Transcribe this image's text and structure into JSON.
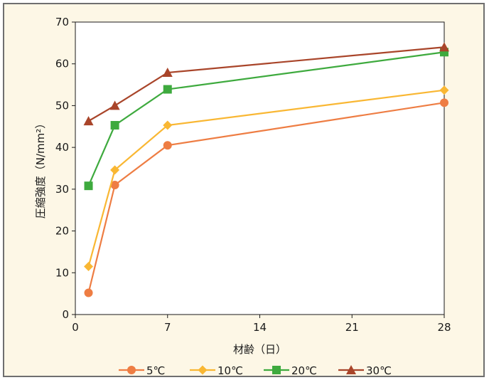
{
  "chart_data": {
    "type": "line",
    "title": "",
    "xlabel": "材齢（日）",
    "ylabel": "圧縮強度（N/mm²）",
    "xlim": [
      0,
      28
    ],
    "ylim": [
      0,
      70
    ],
    "x_ticks": [
      0,
      7,
      14,
      21,
      28
    ],
    "y_ticks": [
      0,
      10,
      20,
      30,
      40,
      50,
      60,
      70
    ],
    "grid": "horizontal",
    "legend_position": "bottom",
    "series": [
      {
        "name": "5℃",
        "color": "#ee7d43",
        "marker": "circle",
        "points": [
          [
            1,
            5.2
          ],
          [
            3,
            31.0
          ],
          [
            7,
            40.5
          ],
          [
            28,
            50.7
          ]
        ]
      },
      {
        "name": "10℃",
        "color": "#f9b733",
        "marker": "diamond",
        "points": [
          [
            1,
            11.5
          ],
          [
            3,
            34.6
          ],
          [
            7,
            45.3
          ],
          [
            28,
            53.7
          ]
        ]
      },
      {
        "name": "20℃",
        "color": "#3eaa3e",
        "marker": "square",
        "points": [
          [
            1,
            30.8
          ],
          [
            3,
            45.3
          ],
          [
            7,
            53.9
          ],
          [
            28,
            62.8
          ]
        ]
      },
      {
        "name": "30℃",
        "color": "#a9452a",
        "marker": "triangle",
        "points": [
          [
            1,
            46.3
          ],
          [
            3,
            50.0
          ],
          [
            7,
            57.9
          ],
          [
            28,
            64.0
          ]
        ]
      }
    ]
  }
}
